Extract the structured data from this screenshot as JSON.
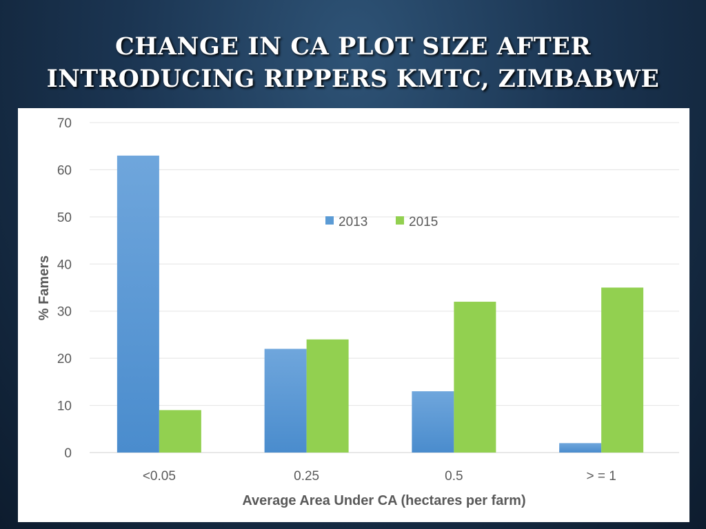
{
  "slide": {
    "title_line1": "CHANGE IN CA PLOT SIZE AFTER",
    "title_line2": "INTRODUCING RIPPERS KMTC, ZIMBABWE"
  },
  "chart_data": {
    "type": "bar",
    "title": "",
    "categories": [
      "<0.05",
      "0.25",
      "0.5",
      "> = 1"
    ],
    "series": [
      {
        "name": "2013",
        "color": "#5b9bd5",
        "values": [
          63,
          22,
          13,
          2
        ]
      },
      {
        "name": "2015",
        "color": "#92d050",
        "values": [
          9,
          24,
          32,
          35
        ]
      }
    ],
    "xlabel": "Average Area Under CA (hectares per farm)",
    "ylabel": "% Famers",
    "ylim": [
      0,
      70
    ],
    "yticks": [
      0,
      10,
      20,
      30,
      40,
      50,
      60,
      70
    ],
    "grid": true,
    "legend": "top-center"
  }
}
